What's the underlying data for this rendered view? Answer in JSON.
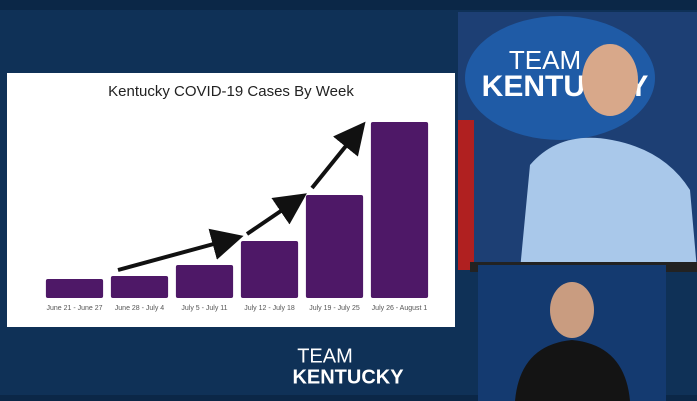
{
  "chart_data": {
    "type": "bar",
    "title": "Kentucky COVID-19 Cases By Week",
    "categories": [
      "June 21 - June 27",
      "June 28 - July 4",
      "July 5 - July 11",
      "July 12 - July 18",
      "July 19 - July 25",
      "July 26 - August 1"
    ],
    "values": [
      19,
      22,
      33,
      57,
      103,
      176
    ],
    "color": "#4e1867",
    "ylim": [
      0,
      200
    ]
  },
  "logo": {
    "line1": "TEAM",
    "line2": "KENTUCKY"
  }
}
